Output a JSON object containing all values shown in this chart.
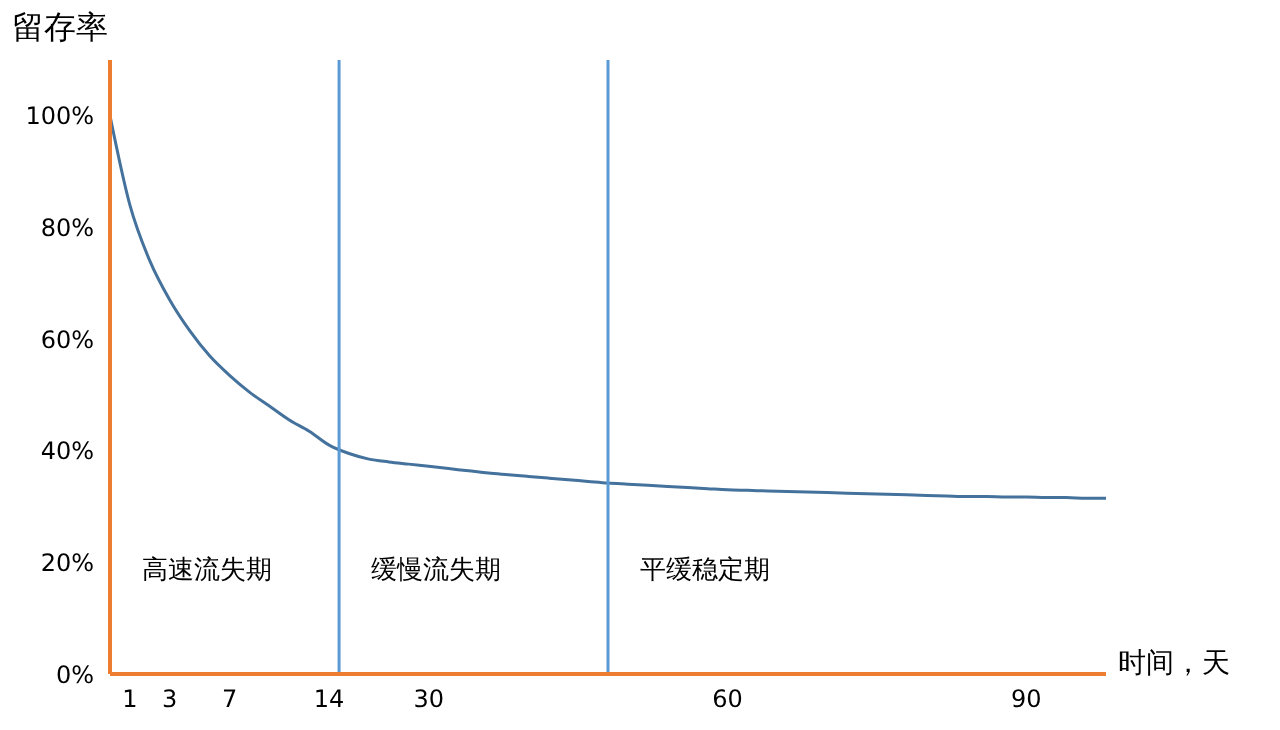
{
  "chart_data": {
    "type": "line",
    "xlabel": "时间，天",
    "ylabel": "留存率",
    "categories": [
      null,
      "1",
      null,
      "3",
      null,
      null,
      "7",
      null,
      null,
      null,
      null,
      "14",
      null,
      null,
      null,
      null,
      "30",
      null,
      null,
      null,
      null,
      null,
      null,
      null,
      null,
      null,
      null,
      null,
      null,
      null,
      null,
      "60",
      null,
      null,
      null,
      null,
      null,
      null,
      null,
      null,
      null,
      null,
      null,
      null,
      null,
      null,
      "90",
      null,
      null,
      null,
      null
    ],
    "series": [
      {
        "color": "#44729c",
        "values": [
          100,
          84,
          74,
          67,
          61.5,
          57,
          53.5,
          50.5,
          48,
          45.5,
          43.5,
          41,
          39.5,
          38.5,
          38,
          37.6,
          37.2,
          36.8,
          36.4,
          36,
          35.7,
          35.4,
          35.1,
          34.8,
          34.5,
          34.2,
          34,
          33.8,
          33.6,
          33.4,
          33.2,
          33,
          32.9,
          32.8,
          32.7,
          32.6,
          32.5,
          32.4,
          32.3,
          32.2,
          32.1,
          32,
          31.9,
          31.8,
          31.8,
          31.7,
          31.7,
          31.6,
          31.6,
          31.5,
          31.5
        ]
      }
    ],
    "ylim": [
      0,
      110
    ],
    "yticks": [
      {
        "value": 0,
        "label": "0%"
      },
      {
        "value": 20,
        "label": "20%"
      },
      {
        "value": 40,
        "label": "40%"
      },
      {
        "value": 60,
        "label": "60%"
      },
      {
        "value": 80,
        "label": "80%"
      },
      {
        "value": 100,
        "label": "100%"
      }
    ],
    "annotations": [
      "高速流失期",
      "缓慢流失期",
      "平缓稳定期"
    ],
    "legend": false,
    "marker": "none",
    "line_style": "solid"
  }
}
